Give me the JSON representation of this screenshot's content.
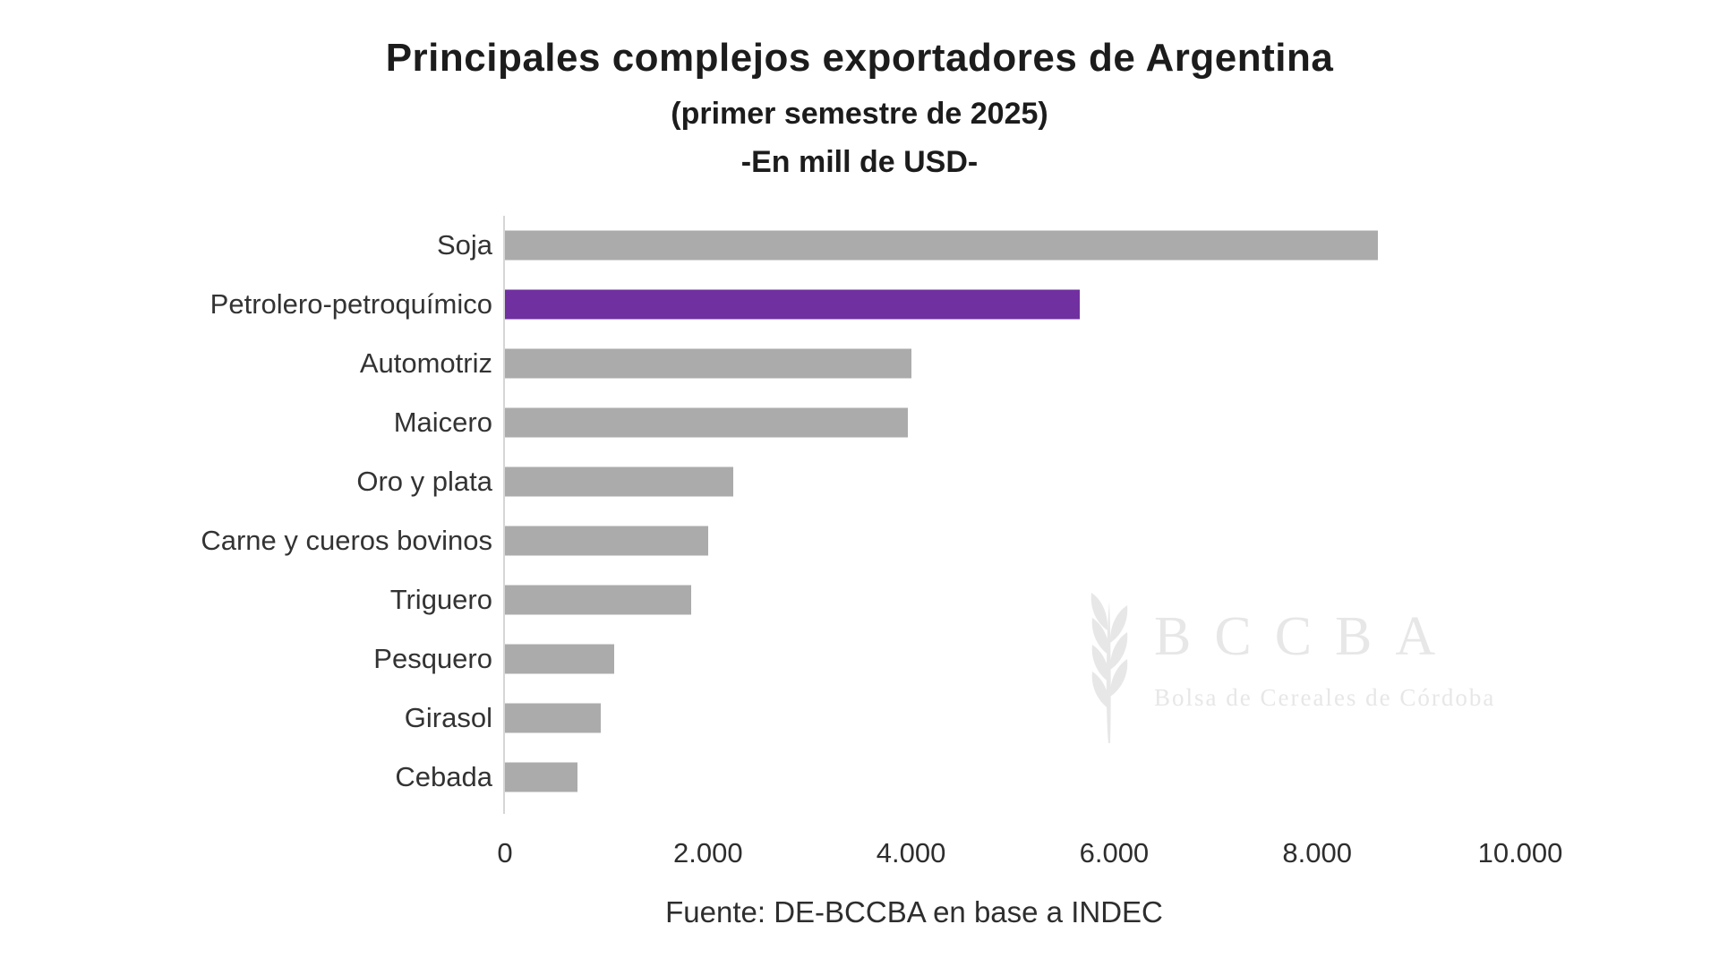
{
  "header": {
    "title": "Principales complejos exportadores de Argentina",
    "subtitle": "(primer semestre de 2025)",
    "units_line": "-En mill de USD-"
  },
  "source": "Fuente: DE-BCCBA en base a INDEC",
  "watermark": {
    "icon": "wheat-spike-icon",
    "acronym": "BCCBA",
    "name": "Bolsa de Cereales de Córdoba"
  },
  "colors": {
    "bar_default": "#ABABAB",
    "bar_highlight": "#7030A0",
    "axis_line": "#D6D6D6",
    "text": "#2E2E2E",
    "watermark": "#E7E7E7"
  },
  "chart_data": {
    "type": "bar",
    "orientation": "horizontal",
    "title": "Principales complejos exportadores de Argentina",
    "subtitle": "(primer semestre de 2025)",
    "units": "millones de USD",
    "categories": [
      "Soja",
      "Petrolero-petroquímico",
      "Automotriz",
      "Maicero",
      "Oro y plata",
      "Carne y cueros bovinos",
      "Triguero",
      "Pesquero",
      "Girasol",
      "Cebada"
    ],
    "values": [
      8600,
      5660,
      4000,
      3970,
      2250,
      2000,
      1830,
      1080,
      940,
      710
    ],
    "highlighted_category": "Petrolero-petroquímico",
    "x_ticks": [
      "0",
      "2.000",
      "4.000",
      "6.000",
      "8.000",
      "10.000"
    ],
    "x_tick_values": [
      0,
      2000,
      4000,
      6000,
      8000,
      10000
    ],
    "xlim": [
      0,
      10000
    ],
    "xlabel": "",
    "ylabel": "",
    "grid": false,
    "legend": false
  }
}
